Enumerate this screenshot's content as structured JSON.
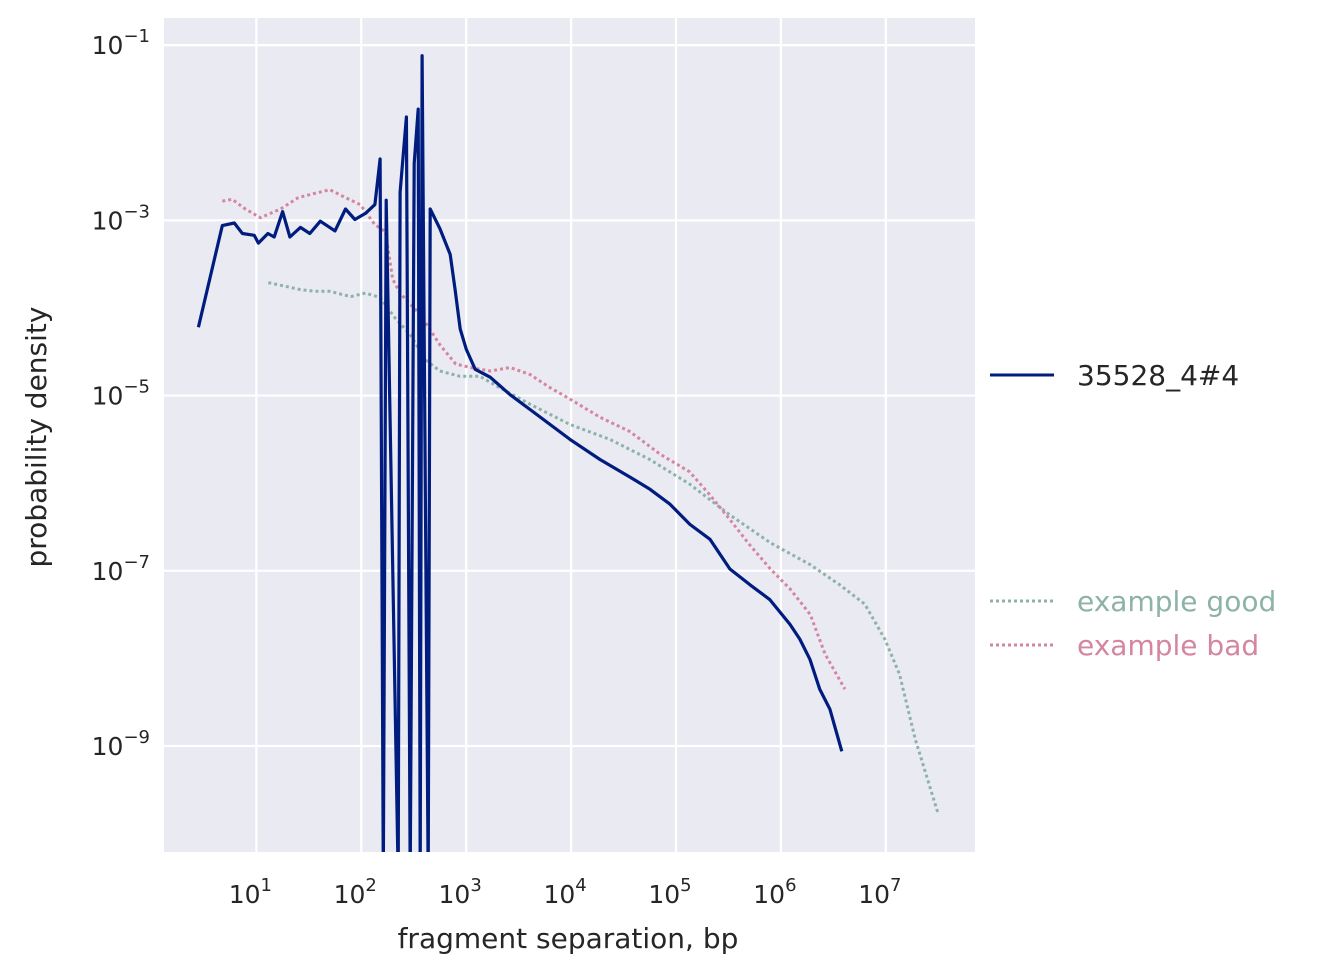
{
  "chart_data": {
    "type": "line",
    "xscale": "log",
    "yscale": "log",
    "xlabel": "fragment separation, bp",
    "ylabel": "probability density",
    "xlim_log10": [
      0.12,
      7.85
    ],
    "ylim_log10": [
      -10.21,
      -0.69
    ],
    "xticks": [
      {
        "exp": 1,
        "label": "10",
        "sup": "1"
      },
      {
        "exp": 2,
        "label": "10",
        "sup": "2"
      },
      {
        "exp": 3,
        "label": "10",
        "sup": "3"
      },
      {
        "exp": 4,
        "label": "10",
        "sup": "4"
      },
      {
        "exp": 5,
        "label": "10",
        "sup": "5"
      },
      {
        "exp": 6,
        "label": "10",
        "sup": "6"
      },
      {
        "exp": 7,
        "label": "10",
        "sup": "7"
      }
    ],
    "yticks": [
      {
        "exp": -1,
        "label": "10",
        "sup": "−1"
      },
      {
        "exp": -3,
        "label": "10",
        "sup": "−3"
      },
      {
        "exp": -5,
        "label": "10",
        "sup": "−5"
      },
      {
        "exp": -7,
        "label": "10",
        "sup": "−7"
      },
      {
        "exp": -9,
        "label": "10",
        "sup": "−9"
      }
    ],
    "grid": true,
    "legend_position": "right, outside",
    "series": [
      {
        "name": "35528_4#4",
        "color": "#001c7f",
        "style": "solid",
        "log10_x": [
          0.448,
          0.676,
          0.79,
          0.867,
          0.98,
          1.02,
          1.11,
          1.17,
          1.25,
          1.32,
          1.42,
          1.51,
          1.61,
          1.75,
          1.85,
          1.94,
          2.04,
          2.13,
          2.18,
          2.21,
          2.238,
          2.352,
          2.37,
          2.43,
          2.467,
          2.505,
          2.543,
          2.562,
          2.58,
          2.638,
          2.657,
          2.752,
          2.848,
          2.895,
          2.943,
          3.0,
          3.086,
          3.229,
          3.419,
          3.61,
          3.8,
          3.99,
          4.276,
          4.562,
          4.752,
          4.943,
          5.133,
          5.324,
          5.514,
          5.705,
          5.895,
          6.086,
          6.18,
          6.276,
          6.37,
          6.467,
          6.58
        ],
        "log10_y": [
          -4.22,
          -3.06,
          -3.03,
          -3.15,
          -3.17,
          -3.26,
          -3.15,
          -3.19,
          -2.9,
          -3.19,
          -3.08,
          -3.15,
          -3.01,
          -3.12,
          -2.87,
          -2.99,
          -2.92,
          -2.82,
          -2.3,
          -10.5,
          -2.77,
          -10.5,
          -2.68,
          -1.82,
          -10.5,
          -2.35,
          -1.73,
          -10.5,
          -1.12,
          -10.5,
          -2.87,
          -3.1,
          -3.39,
          -3.79,
          -4.24,
          -4.47,
          -4.7,
          -4.79,
          -4.99,
          -5.16,
          -5.33,
          -5.5,
          -5.73,
          -5.93,
          -6.07,
          -6.24,
          -6.47,
          -6.64,
          -6.98,
          -7.16,
          -7.33,
          -7.61,
          -7.78,
          -8.01,
          -8.35,
          -8.58,
          -9.06
        ]
      },
      {
        "name": "example good",
        "color": "#8db3a8",
        "style": "dotted",
        "log10_x": [
          1.114,
          1.42,
          1.56,
          1.7,
          1.9,
          2.04,
          2.18,
          2.32,
          2.47,
          2.61,
          2.75,
          2.94,
          3.13,
          3.32,
          3.61,
          3.99,
          4.37,
          4.75,
          5.13,
          5.51,
          5.9,
          6.28,
          6.56,
          6.8,
          6.99,
          7.13,
          7.28,
          7.5
        ],
        "log10_y": [
          -3.71,
          -3.79,
          -3.81,
          -3.81,
          -3.87,
          -3.83,
          -3.88,
          -4.11,
          -4.31,
          -4.59,
          -4.72,
          -4.78,
          -4.78,
          -4.91,
          -5.1,
          -5.33,
          -5.5,
          -5.73,
          -6.01,
          -6.36,
          -6.68,
          -6.93,
          -7.16,
          -7.38,
          -7.78,
          -8.18,
          -8.92,
          -9.78
        ]
      },
      {
        "name": "example bad",
        "color": "#d5869f",
        "style": "dotted",
        "log10_x": [
          0.676,
          0.77,
          0.895,
          1.04,
          1.23,
          1.4,
          1.53,
          1.7,
          1.85,
          1.99,
          2.13,
          2.23,
          2.3,
          2.37,
          2.47,
          2.56,
          2.75,
          2.9,
          3.04,
          3.23,
          3.42,
          3.61,
          3.8,
          3.99,
          4.28,
          4.56,
          4.85,
          5.13,
          5.32,
          5.51,
          5.7,
          5.9,
          6.09,
          6.28,
          6.42,
          6.61
        ],
        "log10_y": [
          -2.78,
          -2.76,
          -2.87,
          -2.97,
          -2.87,
          -2.74,
          -2.7,
          -2.65,
          -2.74,
          -2.82,
          -3.05,
          -3.13,
          -3.67,
          -3.83,
          -3.96,
          -4.07,
          -4.42,
          -4.64,
          -4.68,
          -4.72,
          -4.68,
          -4.76,
          -4.91,
          -5.04,
          -5.25,
          -5.41,
          -5.67,
          -5.87,
          -6.13,
          -6.41,
          -6.7,
          -6.98,
          -7.21,
          -7.5,
          -7.95,
          -8.35
        ]
      }
    ]
  }
}
